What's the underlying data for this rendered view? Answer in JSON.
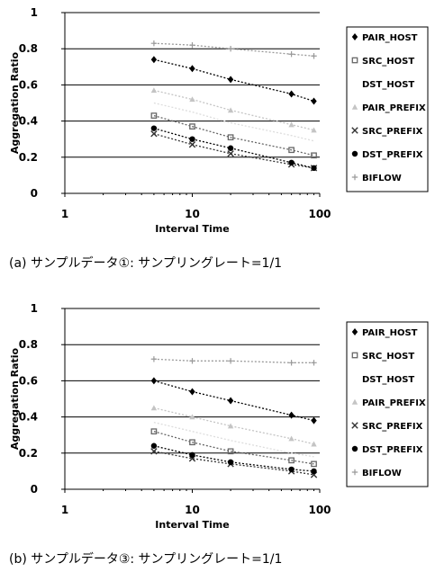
{
  "chart_data": [
    {
      "type": "line",
      "x_scale": "log",
      "xlabel": "Interval Time",
      "ylabel": "Aggregation Ratio",
      "ylim": [
        0,
        1
      ],
      "xlim": [
        1,
        100
      ],
      "x_ticks": [
        "1",
        "10",
        "100"
      ],
      "y_ticks": [
        "0",
        "0.2",
        "0.4",
        "0.6",
        "0.8",
        "1"
      ],
      "grid": "horizontal",
      "legend_position": "right",
      "caption": "(a)  サンプルデータ①: サンプリングレート=1/1",
      "series": [
        {
          "name": "PAIR_HOST",
          "marker": "diamond",
          "color": "#000000",
          "x": [
            5,
            10,
            20,
            60,
            90
          ],
          "y": [
            0.74,
            0.69,
            0.63,
            0.55,
            0.51
          ]
        },
        {
          "name": "SRC_HOST",
          "marker": "square",
          "color": "#666666",
          "x": [
            5,
            10,
            20,
            60,
            90
          ],
          "y": [
            0.43,
            0.37,
            0.31,
            0.24,
            0.21
          ]
        },
        {
          "name": "DST_HOST",
          "marker": "none",
          "color": "#dddddd",
          "x": [
            5,
            10,
            20,
            60,
            90
          ],
          "y": [
            0.5,
            0.45,
            0.39,
            0.32,
            0.29
          ]
        },
        {
          "name": "PAIR_PREFIX",
          "marker": "triangle",
          "color": "#c4c4c4",
          "x": [
            5,
            10,
            20,
            60,
            90
          ],
          "y": [
            0.57,
            0.52,
            0.46,
            0.38,
            0.35
          ]
        },
        {
          "name": "SRC_PREFIX",
          "marker": "x",
          "color": "#333333",
          "x": [
            5,
            10,
            20,
            60,
            90
          ],
          "y": [
            0.33,
            0.27,
            0.22,
            0.16,
            0.14
          ]
        },
        {
          "name": "DST_PREFIX",
          "marker": "circle",
          "color": "#000000",
          "x": [
            5,
            10,
            20,
            60,
            90
          ],
          "y": [
            0.36,
            0.3,
            0.25,
            0.17,
            0.14
          ]
        },
        {
          "name": "BIFLOW",
          "marker": "plus",
          "color": "#999999",
          "x": [
            5,
            10,
            20,
            60,
            90
          ],
          "y": [
            0.83,
            0.82,
            0.8,
            0.77,
            0.76
          ]
        }
      ]
    },
    {
      "type": "line",
      "x_scale": "log",
      "xlabel": "Interval Time",
      "ylabel": "Aggregation Ratio",
      "ylim": [
        0,
        1
      ],
      "xlim": [
        1,
        100
      ],
      "x_ticks": [
        "1",
        "10",
        "100"
      ],
      "y_ticks": [
        "0",
        "0.2",
        "0.4",
        "0.6",
        "0.8",
        "1"
      ],
      "grid": "horizontal",
      "legend_position": "right",
      "caption": "(b)  サンプルデータ③: サンプリングレート=1/1",
      "series": [
        {
          "name": "PAIR_HOST",
          "marker": "diamond",
          "color": "#000000",
          "x": [
            5,
            10,
            20,
            60,
            90
          ],
          "y": [
            0.6,
            0.54,
            0.49,
            0.41,
            0.38
          ]
        },
        {
          "name": "SRC_HOST",
          "marker": "square",
          "color": "#666666",
          "x": [
            5,
            10,
            20,
            60,
            90
          ],
          "y": [
            0.32,
            0.26,
            0.21,
            0.16,
            0.14
          ]
        },
        {
          "name": "DST_HOST",
          "marker": "none",
          "color": "#dddddd",
          "x": [
            5,
            10,
            20,
            60,
            90
          ],
          "y": [
            0.37,
            0.32,
            0.27,
            0.2,
            0.18
          ]
        },
        {
          "name": "PAIR_PREFIX",
          "marker": "triangle",
          "color": "#c4c4c4",
          "x": [
            5,
            10,
            20,
            60,
            90
          ],
          "y": [
            0.45,
            0.4,
            0.35,
            0.28,
            0.25
          ]
        },
        {
          "name": "SRC_PREFIX",
          "marker": "x",
          "color": "#333333",
          "x": [
            5,
            10,
            20,
            60,
            90
          ],
          "y": [
            0.21,
            0.17,
            0.14,
            0.1,
            0.08
          ]
        },
        {
          "name": "DST_PREFIX",
          "marker": "circle",
          "color": "#000000",
          "x": [
            5,
            10,
            20,
            60,
            90
          ],
          "y": [
            0.24,
            0.19,
            0.15,
            0.11,
            0.1
          ]
        },
        {
          "name": "BIFLOW",
          "marker": "plus",
          "color": "#999999",
          "x": [
            5,
            10,
            20,
            60,
            90
          ],
          "y": [
            0.72,
            0.71,
            0.71,
            0.7,
            0.7
          ]
        }
      ]
    }
  ]
}
